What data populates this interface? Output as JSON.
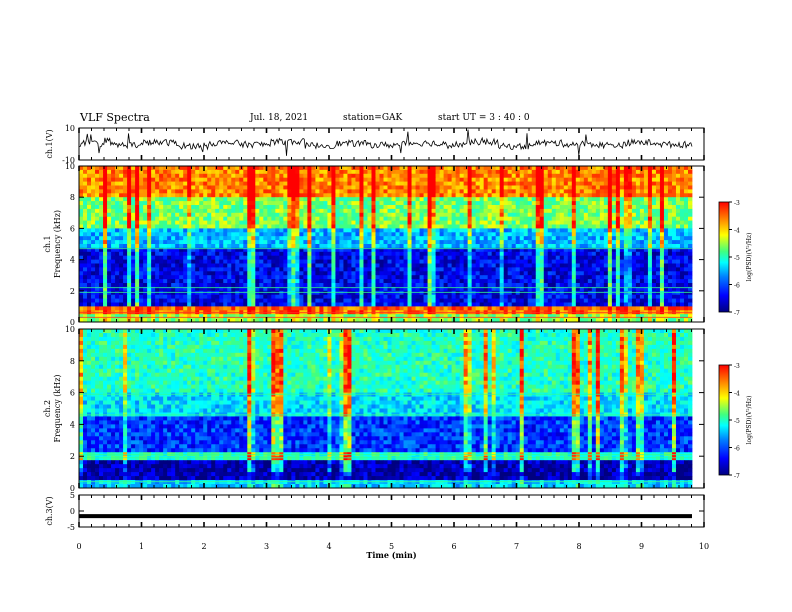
{
  "header": {
    "title": "VLF Spectra",
    "date": "Jul. 18, 2021",
    "station": "station=GAK",
    "start": "start UT = 3 : 40 : 0"
  },
  "colors": {
    "waveform": "#000000",
    "colormap": [
      "#000080",
      "#0000ff",
      "#0080ff",
      "#00ffff",
      "#40ff80",
      "#ffff00",
      "#ff8000",
      "#ff0000"
    ]
  },
  "chart_data": [
    {
      "type": "line",
      "title": "",
      "xlabel": "",
      "ylabel": "ch.1(V)",
      "xlim": [
        0,
        10
      ],
      "ylim": [
        -10,
        10
      ],
      "yticks": [
        "10",
        "-10"
      ],
      "series": [
        {
          "values_description_sampled": [
            1,
            -2,
            3,
            -4,
            2,
            -1,
            5,
            -3,
            1,
            -2,
            2,
            -1,
            4,
            -5,
            2,
            0,
            -2,
            3,
            -1,
            1
          ]
        }
      ]
    },
    {
      "type": "heatmap",
      "title": "",
      "xlabel": "",
      "ylabel": "ch.1 Frequency (kHz)",
      "xlim": [
        0,
        10
      ],
      "ylim": [
        0,
        10
      ],
      "yticks": [
        "0",
        "2",
        "4",
        "6",
        "8",
        "10"
      ],
      "colorbar": {
        "label": "log(PSD)(V²/Hz)",
        "range": [
          -7,
          -3
        ],
        "ticks": [
          "-3",
          "-4",
          "-5",
          "-6",
          "-7"
        ]
      },
      "bands": [
        {
          "from_khz": 0,
          "to_khz": 0.4,
          "level": -4.5
        },
        {
          "from_khz": 0.4,
          "to_khz": 1.0,
          "level": -3.5
        },
        {
          "from_khz": 1.0,
          "to_khz": 4.8,
          "level": -6.5
        },
        {
          "from_khz": 4.8,
          "to_khz": 6.0,
          "level": -5.6
        },
        {
          "from_khz": 6.0,
          "to_khz": 8.0,
          "level": -4.6
        },
        {
          "from_khz": 8.0,
          "to_khz": 10.0,
          "level": -3.6
        }
      ]
    },
    {
      "type": "heatmap",
      "title": "",
      "xlabel": "",
      "ylabel": "ch.2 Frequency (kHz)",
      "xlim": [
        0,
        10
      ],
      "ylim": [
        0,
        10
      ],
      "yticks": [
        "0",
        "2",
        "4",
        "6",
        "8",
        "10"
      ],
      "colorbar": {
        "label": "log(PSD)(V²/Hz)",
        "range": [
          -7,
          -3
        ],
        "ticks": [
          "-3",
          "-4",
          "-5",
          "-6",
          "-7"
        ]
      },
      "bands": [
        {
          "from_khz": 0,
          "to_khz": 0.5,
          "level": -5.5
        },
        {
          "from_khz": 0.5,
          "to_khz": 1.8,
          "level": -6.8
        },
        {
          "from_khz": 1.8,
          "to_khz": 2.2,
          "level": -5.0
        },
        {
          "from_khz": 2.2,
          "to_khz": 4.5,
          "level": -6.2
        },
        {
          "from_khz": 4.5,
          "to_khz": 6.0,
          "level": -5.4
        },
        {
          "from_khz": 6.0,
          "to_khz": 10.0,
          "level": -5.0
        }
      ]
    },
    {
      "type": "line",
      "title": "",
      "xlabel": "Time (min)",
      "ylabel": "ch.3(V)",
      "xlim": [
        0,
        10
      ],
      "ylim": [
        -5,
        5
      ],
      "yticks": [
        "5",
        "0",
        "-5"
      ],
      "xticks": [
        "0",
        "1",
        "2",
        "3",
        "4",
        "5",
        "6",
        "7",
        "8",
        "9",
        "10"
      ],
      "series": [
        {
          "values": [
            -1.6,
            -1.6
          ]
        }
      ]
    }
  ]
}
